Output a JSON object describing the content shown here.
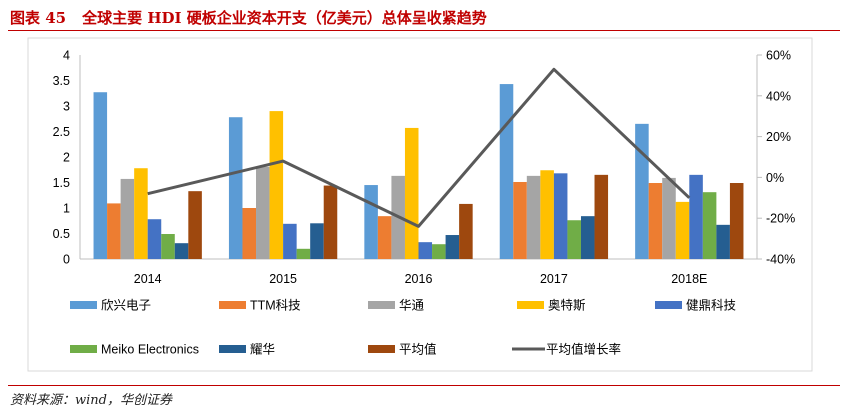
{
  "figure_label": "图表 45",
  "source": "资料来源：wind，华创证券",
  "colors": {
    "title": "#C00000",
    "rule": "#C00000",
    "frame": "#D9D9D9",
    "axis": "#BFBFBF"
  },
  "chart_data": {
    "type": "bar",
    "title": "全球主要 HDI 硬板企业资本开支（亿美元）总体呈收紧趋势",
    "categories": [
      "2014",
      "2015",
      "2016",
      "2017",
      "2018E"
    ],
    "series": [
      {
        "name": "欣兴电子",
        "color": "#5B9BD5",
        "values": [
          3.27,
          2.78,
          1.45,
          3.43,
          2.65
        ]
      },
      {
        "name": "TTM科技",
        "color": "#ED7D31",
        "values": [
          1.09,
          1.0,
          0.84,
          1.51,
          1.49
        ]
      },
      {
        "name": "华通",
        "color": "#A5A5A5",
        "values": [
          1.57,
          1.81,
          1.63,
          1.63,
          1.59
        ]
      },
      {
        "name": "奥特斯",
        "color": "#FFC000",
        "values": [
          1.78,
          2.9,
          2.57,
          1.74,
          1.12
        ]
      },
      {
        "name": "健鼎科技",
        "color": "#4472C4",
        "values": [
          0.78,
          0.69,
          0.33,
          1.68,
          1.65
        ]
      },
      {
        "name": "Meiko Electronics",
        "color": "#70AD47",
        "values": [
          0.49,
          0.2,
          0.29,
          0.76,
          1.31
        ]
      },
      {
        "name": "耀华",
        "color": "#255E91",
        "values": [
          0.31,
          0.7,
          0.47,
          0.84,
          0.67
        ]
      },
      {
        "name": "平均值",
        "color": "#9E480E",
        "values": [
          1.33,
          1.44,
          1.08,
          1.65,
          1.49
        ]
      }
    ],
    "line_series": {
      "name": "平均值增长率",
      "color": "#595959",
      "y_axis": "right",
      "values_pct": [
        -8,
        8,
        -24,
        53,
        -10
      ]
    },
    "y_left": {
      "lim": [
        0,
        4
      ],
      "ticks": [
        "0",
        "0.5",
        "1",
        "1.5",
        "2",
        "2.5",
        "3",
        "3.5",
        "4"
      ]
    },
    "y_right": {
      "lim": [
        -40,
        60
      ],
      "ticks": [
        "-40%",
        "-20%",
        "0%",
        "20%",
        "40%",
        "60%"
      ]
    },
    "legend_position": "bottom",
    "grid": false
  }
}
